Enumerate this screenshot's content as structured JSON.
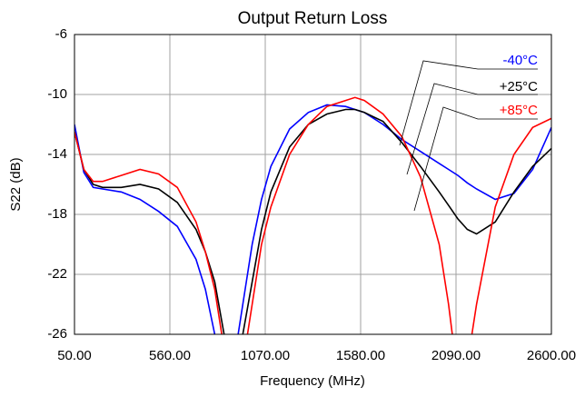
{
  "chart_data": {
    "type": "line",
    "title": "Output Return Loss",
    "x_label": "Frequency (MHz)",
    "y_label": "S22 (dB)",
    "x": [
      50,
      100,
      150,
      200,
      300,
      400,
      500,
      600,
      700,
      750,
      800,
      850,
      900,
      950,
      1000,
      1050,
      1100,
      1200,
      1300,
      1400,
      1500,
      1550,
      1600,
      1700,
      1800,
      1900,
      2000,
      2050,
      2100,
      2150,
      2200,
      2300,
      2400,
      2500,
      2600
    ],
    "series": [
      {
        "name": "-40°C",
        "color": "#0000ff",
        "values": [
          -12,
          -15.2,
          -16.2,
          -16.3,
          -16.5,
          -17,
          -17.8,
          -18.8,
          -21,
          -23,
          -26,
          -30,
          -28,
          -24,
          -20,
          -17,
          -14.8,
          -12.3,
          -11.2,
          -10.7,
          -10.8,
          -11,
          -11.2,
          -12,
          -13,
          -13.8,
          -14.6,
          -15,
          -15.4,
          -15.9,
          -16.3,
          -17,
          -16.6,
          -15,
          -12.2
        ]
      },
      {
        "name": "+25°C",
        "color": "#000000",
        "values": [
          -12.5,
          -15,
          -16,
          -16.2,
          -16.2,
          -16,
          -16.3,
          -17.2,
          -19,
          -20.5,
          -22.5,
          -26,
          -30,
          -26,
          -22.5,
          -19,
          -16.5,
          -13.5,
          -12,
          -11.3,
          -11,
          -11,
          -11.2,
          -11.8,
          -13.2,
          -14.8,
          -16.5,
          -17.4,
          -18.3,
          -19,
          -19.3,
          -18.5,
          -16.5,
          -14.8,
          -13.6
        ]
      },
      {
        "name": "+85°C",
        "color": "#ff0000",
        "values": [
          -12.5,
          -15,
          -15.8,
          -15.8,
          -15.4,
          -15,
          -15.3,
          -16.2,
          -18.5,
          -20.5,
          -23,
          -27,
          -31,
          -28,
          -24,
          -20,
          -17.5,
          -14,
          -12,
          -10.8,
          -10.4,
          -10.2,
          -10.4,
          -11.3,
          -12.8,
          -15.5,
          -20,
          -24,
          -29,
          -28,
          -24,
          -17.5,
          -14,
          -12.2,
          -11.6
        ]
      }
    ],
    "xlim": [
      50,
      2600
    ],
    "xticks": [
      {
        "value": 50,
        "label": "50.00"
      },
      {
        "value": 560,
        "label": "560.00"
      },
      {
        "value": 1070,
        "label": "1070.00"
      },
      {
        "value": 1580,
        "label": "1580.00"
      },
      {
        "value": 2090,
        "label": "2090.00"
      },
      {
        "value": 2600,
        "label": "2600.00"
      }
    ],
    "ylim": [
      -26,
      -6
    ],
    "yticks": [
      -6,
      -10,
      -14,
      -18,
      -22,
      -26
    ],
    "grid": true
  }
}
